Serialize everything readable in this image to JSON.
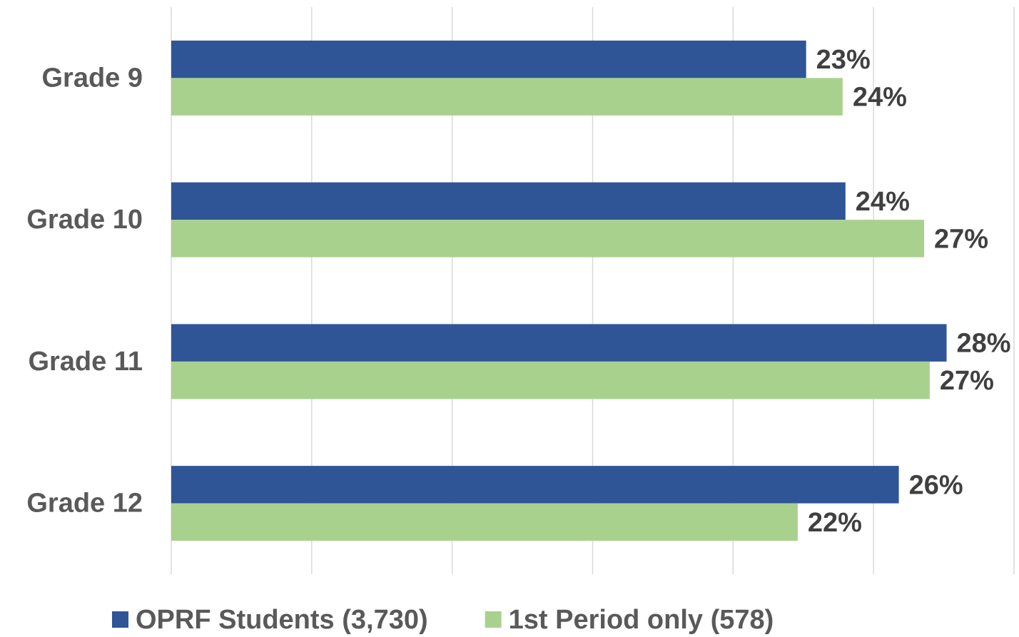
{
  "chart_data": {
    "type": "hbar",
    "categories": [
      "Grade 9",
      "Grade 10",
      "Grade 11",
      "Grade 12"
    ],
    "series": [
      {
        "name": "OPRF Students (3,730)",
        "color": "#2f5597",
        "values": [
          22.6,
          24.0,
          27.6,
          25.9
        ],
        "value_labels": [
          "23%",
          "24%",
          "28%",
          "26%"
        ]
      },
      {
        "name": "1st Period only (578)",
        "color": "#a9d18e",
        "values": [
          23.9,
          26.8,
          27.0,
          22.3
        ],
        "value_labels": [
          "24%",
          "27%",
          "27%",
          "22%"
        ]
      }
    ],
    "xlim": [
      0,
      30
    ],
    "xticks": [
      0,
      5,
      10,
      15,
      20,
      25,
      30
    ],
    "grid": true,
    "legend": "bottom"
  }
}
